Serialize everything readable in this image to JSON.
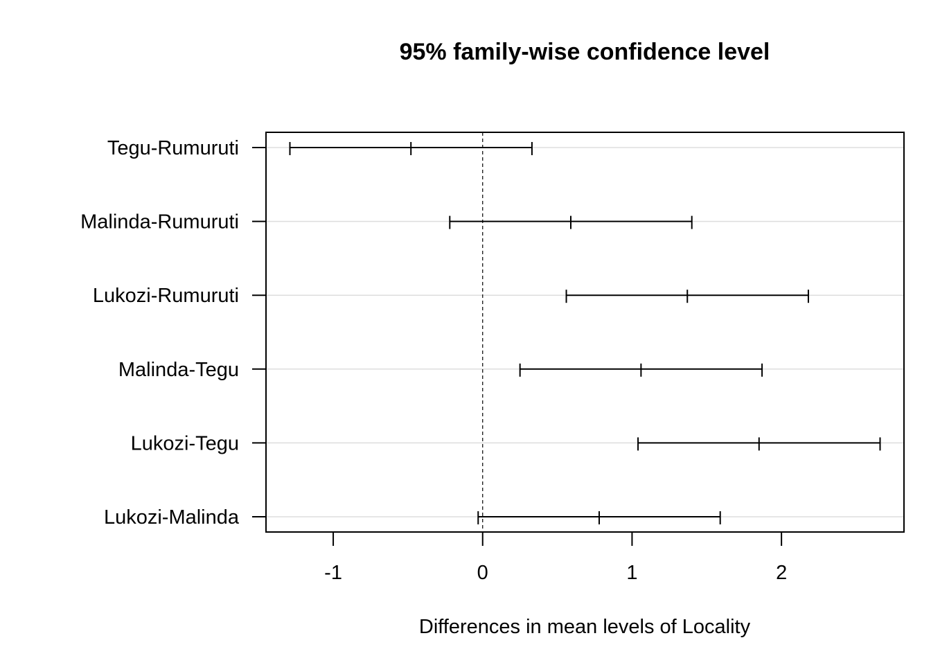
{
  "chart_data": {
    "type": "errorbar",
    "title": "95% family-wise confidence level",
    "xlabel": "Differences in mean levels of Locality",
    "ylabel": "",
    "xlim": [
      -1.45,
      2.82
    ],
    "x_ticks": [
      -1,
      0,
      1,
      2
    ],
    "x_tick_labels": [
      "-1",
      "0",
      "1",
      "2"
    ],
    "reference_line": 0,
    "grid": true,
    "comparisons": [
      {
        "label": "Tegu-Rumuruti",
        "lwr": -1.29,
        "diff": -0.48,
        "upr": 0.33
      },
      {
        "label": "Malinda-Rumuruti",
        "lwr": -0.22,
        "diff": 0.59,
        "upr": 1.4
      },
      {
        "label": "Lukozi-Rumuruti",
        "lwr": 0.56,
        "diff": 1.37,
        "upr": 2.18
      },
      {
        "label": "Malinda-Tegu",
        "lwr": 0.25,
        "diff": 1.06,
        "upr": 1.87
      },
      {
        "label": "Lukozi-Tegu",
        "lwr": 1.04,
        "diff": 1.85,
        "upr": 2.66
      },
      {
        "label": "Lukozi-Malinda",
        "lwr": -0.03,
        "diff": 0.78,
        "upr": 1.59
      }
    ]
  }
}
